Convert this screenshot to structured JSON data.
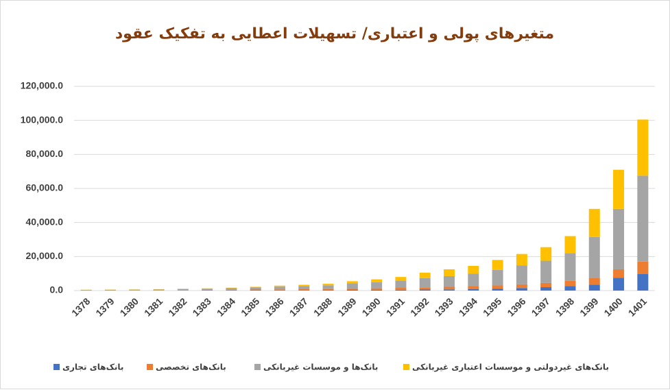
{
  "chart_data": {
    "type": "stacked_bar",
    "title": "متغیرهای پولی و اعتباری/ تسهیلات اعطایی به تفکیک عقود",
    "categories": [
      "1378",
      "1379",
      "1380",
      "1381",
      "1382",
      "1383",
      "1384",
      "1385",
      "1386",
      "1387",
      "1388",
      "1389",
      "1390",
      "1391",
      "1392",
      "1393",
      "1394",
      "1395",
      "1396",
      "1397",
      "1398",
      "1399",
      "1400",
      "1401"
    ],
    "series": [
      {
        "name": "بانک‌های تجاری",
        "color": "#4472c4",
        "values": [
          50,
          60,
          70,
          80,
          100,
          120,
          150,
          200,
          250,
          300,
          350,
          400,
          450,
          500,
          600,
          700,
          800,
          1000,
          1500,
          2000,
          2700,
          3500,
          7500,
          9800
        ]
      },
      {
        "name": "بانک‌های تخصصی",
        "color": "#ed7d31",
        "values": [
          130,
          150,
          180,
          200,
          250,
          300,
          350,
          400,
          450,
          500,
          600,
          750,
          900,
          1100,
          1300,
          1500,
          1800,
          2000,
          2200,
          2500,
          3000,
          4000,
          5000,
          7200
        ]
      },
      {
        "name": "بانک‌ها و موسسات غیربانکی",
        "color": "#a5a5a5",
        "values": [
          200,
          250,
          300,
          350,
          550,
          650,
          900,
          1200,
          1600,
          1900,
          2150,
          3050,
          3600,
          4200,
          5400,
          6300,
          7400,
          9200,
          11000,
          13000,
          16300,
          24000,
          35500,
          50500
        ]
      },
      {
        "name": "بانک‌های غیردولتی و موسسات اعتباری غیربانکی",
        "color": "#ffc000",
        "values": [
          120,
          140,
          150,
          170,
          200,
          230,
          300,
          400,
          600,
          700,
          900,
          1300,
          1650,
          2200,
          3200,
          4000,
          4500,
          5800,
          6800,
          8000,
          10000,
          16500,
          23000,
          33000
        ]
      }
    ],
    "ylim": [
      0,
      120000
    ],
    "yticks": [
      {
        "value": 0,
        "label": "0.0"
      },
      {
        "value": 20000,
        "label": "20,000.0"
      },
      {
        "value": 40000,
        "label": "40,000.0"
      },
      {
        "value": 60000,
        "label": "60,000.0"
      },
      {
        "value": 80000,
        "label": "80,000.0"
      },
      {
        "value": 100000,
        "label": "100,000.0"
      },
      {
        "value": 120000,
        "label": "120,000.0"
      }
    ],
    "grid": true,
    "legend": "bottom"
  }
}
